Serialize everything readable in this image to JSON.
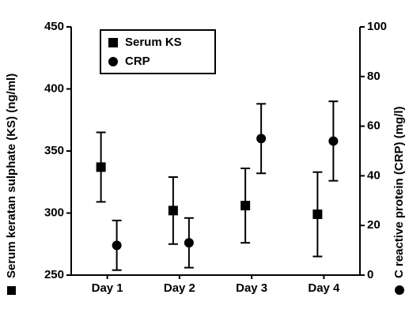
{
  "chart_data": {
    "type": "errorbar",
    "categories": [
      "Day 1",
      "Day 2",
      "Day 3",
      "Day 4"
    ],
    "y_label": "Serum keratan sulphate (KS) (ng/ml)",
    "y2_label": "C reactive protein (CRP) (mg/l)",
    "ylim": [
      250,
      450
    ],
    "yticks": [
      250,
      300,
      350,
      400,
      450
    ],
    "y2lim": [
      0,
      100
    ],
    "y2ticks": [
      0,
      20,
      40,
      60,
      80,
      100
    ],
    "legend": "upper-left",
    "series": [
      {
        "name": "Serum KS",
        "marker": "square",
        "color": "#000000",
        "values": [
          337,
          302,
          306,
          299
        ],
        "errors": [
          28,
          27,
          30,
          34
        ]
      },
      {
        "name": "CRP",
        "marker": "circle",
        "color": "#000000",
        "axis": "y2",
        "values": [
          12,
          13,
          55,
          54
        ],
        "errors": [
          10,
          10,
          14,
          16
        ]
      }
    ]
  }
}
